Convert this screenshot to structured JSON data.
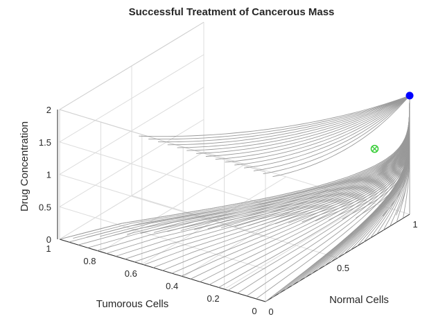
{
  "chart_data": {
    "type": "surface3d",
    "title": "Successful Treatment of Cancerous Mass",
    "xlabel": "Normal Cells",
    "ylabel": "Tumorous Cells",
    "zlabel": "Drug Concentration",
    "xlim": [
      0,
      1
    ],
    "ylim": [
      0,
      1
    ],
    "zlim": [
      0,
      2
    ],
    "x_ticks": [
      0,
      0.5,
      1
    ],
    "x_tick_labels": [
      "0",
      "0.5",
      "1"
    ],
    "y_ticks": [
      0,
      0.2,
      0.4,
      0.6,
      0.8,
      1
    ],
    "y_tick_labels": [
      "0",
      "0.2",
      "0.4",
      "0.6",
      "0.8",
      "1"
    ],
    "z_ticks": [
      0,
      0.5,
      1,
      1.5,
      2
    ],
    "z_tick_labels": [
      "0",
      "0.5",
      "1",
      "1.5",
      "2"
    ],
    "grid": true,
    "trajectory_color": "#999999",
    "attractor_point": {
      "x": 1.0,
      "y": 0.0,
      "z": 1.83,
      "color": "#0000ff",
      "marker": "filled-circle"
    },
    "saddle_point": {
      "x": 0.8,
      "y": 0.03,
      "z": 1.25,
      "color": "#33cc33",
      "marker": "circle-cross"
    }
  }
}
